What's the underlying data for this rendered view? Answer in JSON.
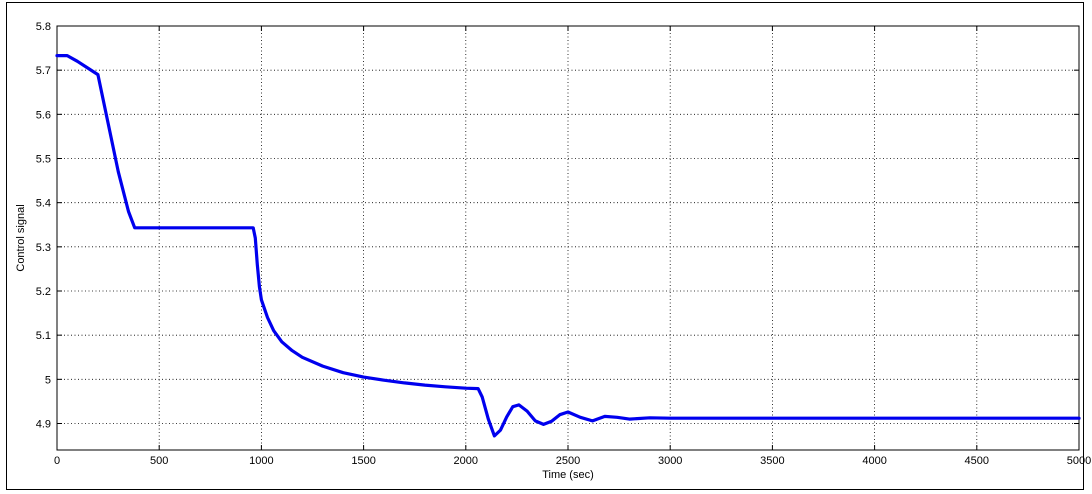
{
  "chart_data": {
    "type": "line",
    "title": "",
    "xlabel": "Time (sec)",
    "ylabel": "Control signal",
    "xlim": [
      0,
      5000
    ],
    "ylim": [
      4.84,
      5.8
    ],
    "grid": true,
    "xticks": [
      0,
      500,
      1000,
      1500,
      2000,
      2500,
      3000,
      3500,
      4000,
      4500,
      5000
    ],
    "yticks": [
      4.9,
      5.0,
      5.1,
      5.2,
      5.3,
      5.4,
      5.5,
      5.6,
      5.7,
      5.8
    ],
    "xtick_labels": [
      "0",
      "500",
      "1000",
      "1500",
      "2000",
      "2500",
      "3000",
      "3500",
      "4000",
      "4500",
      "5000"
    ],
    "ytick_labels": [
      "4.9",
      "5",
      "5.1",
      "5.2",
      "5.3",
      "5.4",
      "5.5",
      "5.6",
      "5.7",
      "5.8"
    ],
    "line_color": "#0000ee",
    "series": [
      {
        "x": [
          0,
          50,
          100,
          150,
          200,
          250,
          300,
          350,
          380,
          500,
          700,
          900,
          960,
          970,
          980,
          990,
          1000,
          1030,
          1060,
          1100,
          1150,
          1200,
          1300,
          1400,
          1500,
          1600,
          1700,
          1800,
          1900,
          2000,
          2060,
          2080,
          2110,
          2140,
          2170,
          2200,
          2230,
          2260,
          2300,
          2340,
          2380,
          2420,
          2460,
          2500,
          2560,
          2620,
          2680,
          2740,
          2800,
          2900,
          3000,
          3200,
          3500,
          4000,
          4500,
          5000
        ],
        "y": [
          5.733,
          5.733,
          5.72,
          5.705,
          5.69,
          5.58,
          5.47,
          5.38,
          5.343,
          5.343,
          5.343,
          5.343,
          5.343,
          5.32,
          5.26,
          5.21,
          5.18,
          5.14,
          5.11,
          5.085,
          5.065,
          5.05,
          5.03,
          5.015,
          5.005,
          4.998,
          4.992,
          4.987,
          4.983,
          4.98,
          4.979,
          4.96,
          4.91,
          4.872,
          4.885,
          4.915,
          4.938,
          4.942,
          4.928,
          4.906,
          4.898,
          4.905,
          4.92,
          4.926,
          4.914,
          4.906,
          4.916,
          4.914,
          4.91,
          4.913,
          4.912,
          4.912,
          4.912,
          4.912,
          4.912,
          4.912
        ]
      }
    ]
  }
}
